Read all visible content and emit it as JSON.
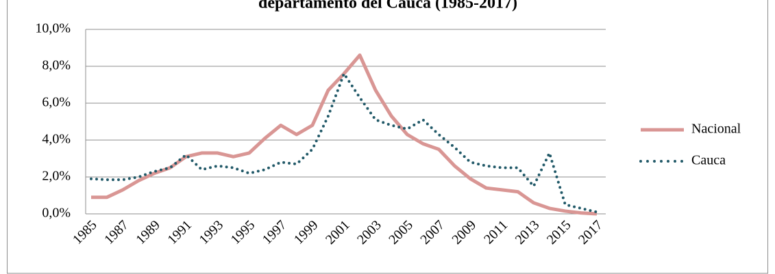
{
  "chart_data": {
    "type": "line",
    "title": "departamento del Cauca (1985-2017)",
    "categories": [
      "1985",
      null,
      "1987",
      null,
      "1989",
      null,
      "1991",
      null,
      "1993",
      null,
      "1995",
      null,
      "1997",
      null,
      "1999",
      null,
      "2001",
      null,
      "2003",
      null,
      "2005",
      null,
      "2007",
      null,
      "2009",
      null,
      "2011",
      null,
      "2013",
      null,
      "2015",
      null,
      "2017"
    ],
    "series": [
      {
        "name": "Nacional",
        "color": "#d99694",
        "values": [
          0.9,
          0.9,
          1.3,
          1.8,
          2.2,
          2.5,
          3.1,
          3.3,
          3.3,
          3.1,
          3.3,
          4.1,
          4.8,
          4.3,
          4.8,
          6.7,
          7.6,
          8.6,
          6.7,
          5.3,
          4.3,
          3.8,
          3.5,
          2.6,
          1.9,
          1.4,
          1.3,
          1.2,
          0.6,
          0.3,
          0.15,
          0.05,
          0.0
        ]
      },
      {
        "name": "Cauca",
        "color": "#215968",
        "values": [
          1.9,
          1.85,
          1.85,
          2.0,
          2.3,
          2.5,
          3.2,
          2.4,
          2.6,
          2.5,
          2.2,
          2.4,
          2.8,
          2.7,
          3.5,
          5.3,
          7.6,
          6.3,
          5.1,
          4.8,
          4.6,
          5.1,
          4.3,
          3.6,
          2.8,
          2.6,
          2.5,
          2.5,
          1.5,
          3.3,
          0.5,
          0.3,
          0.1
        ]
      }
    ],
    "ylim": [
      0,
      10
    ],
    "yticks": [
      {
        "value": 0,
        "label": "0,0%"
      },
      {
        "value": 2,
        "label": "2,0%"
      },
      {
        "value": 4,
        "label": "4,0%"
      },
      {
        "value": 6,
        "label": "6,0%"
      },
      {
        "value": 8,
        "label": "8,0%"
      },
      {
        "value": 10,
        "label": "10,0%"
      }
    ],
    "grid": true,
    "legend": "right"
  }
}
